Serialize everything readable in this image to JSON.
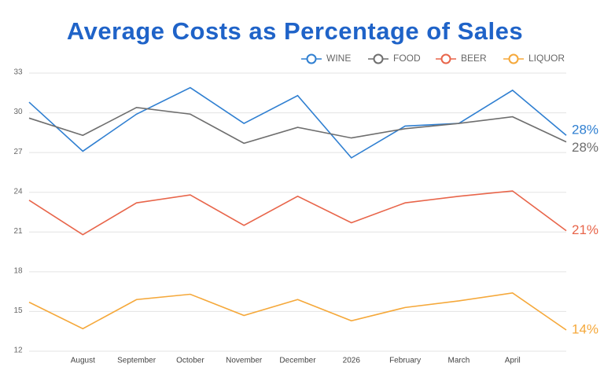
{
  "chart_data": {
    "type": "line",
    "title": "Average Costs as Percentage of Sales",
    "categories": [
      null,
      "August",
      "September",
      "October",
      "November",
      "December",
      "2026",
      "February",
      "March",
      "April",
      null
    ],
    "ylim": [
      12,
      33
    ],
    "yticks": [
      12,
      15,
      18,
      21,
      24,
      27,
      30,
      33
    ],
    "grid": true,
    "series": [
      {
        "name": "WINE",
        "color": "#2f7fd1",
        "values": [
          30.8,
          27.1,
          29.9,
          31.9,
          29.2,
          31.3,
          26.6,
          29.0,
          29.2,
          31.7,
          28.3
        ],
        "value_labels": [
          null,
          null,
          null,
          null,
          null,
          null,
          null,
          null,
          null,
          null,
          "28%"
        ]
      },
      {
        "name": "FOOD",
        "color": "#6e6e6e",
        "values": [
          29.6,
          28.3,
          30.4,
          29.9,
          27.7,
          28.9,
          28.1,
          28.8,
          29.2,
          29.7,
          27.8
        ],
        "value_labels": [
          null,
          null,
          null,
          null,
          null,
          null,
          null,
          null,
          null,
          null,
          "28%"
        ]
      },
      {
        "name": "BEER",
        "color": "#e8654a",
        "values": [
          23.4,
          20.8,
          23.2,
          23.8,
          21.5,
          23.7,
          21.7,
          23.2,
          23.7,
          24.1,
          21.1
        ],
        "value_labels": [
          null,
          null,
          null,
          null,
          null,
          null,
          null,
          null,
          null,
          null,
          "21%"
        ]
      },
      {
        "name": "LIQUOR",
        "color": "#f5a83a",
        "values": [
          15.7,
          13.7,
          15.9,
          16.3,
          14.7,
          15.9,
          14.3,
          15.3,
          15.8,
          16.4,
          13.6
        ],
        "value_labels": [
          null,
          null,
          null,
          null,
          null,
          null,
          null,
          null,
          null,
          null,
          "14%"
        ]
      }
    ]
  }
}
